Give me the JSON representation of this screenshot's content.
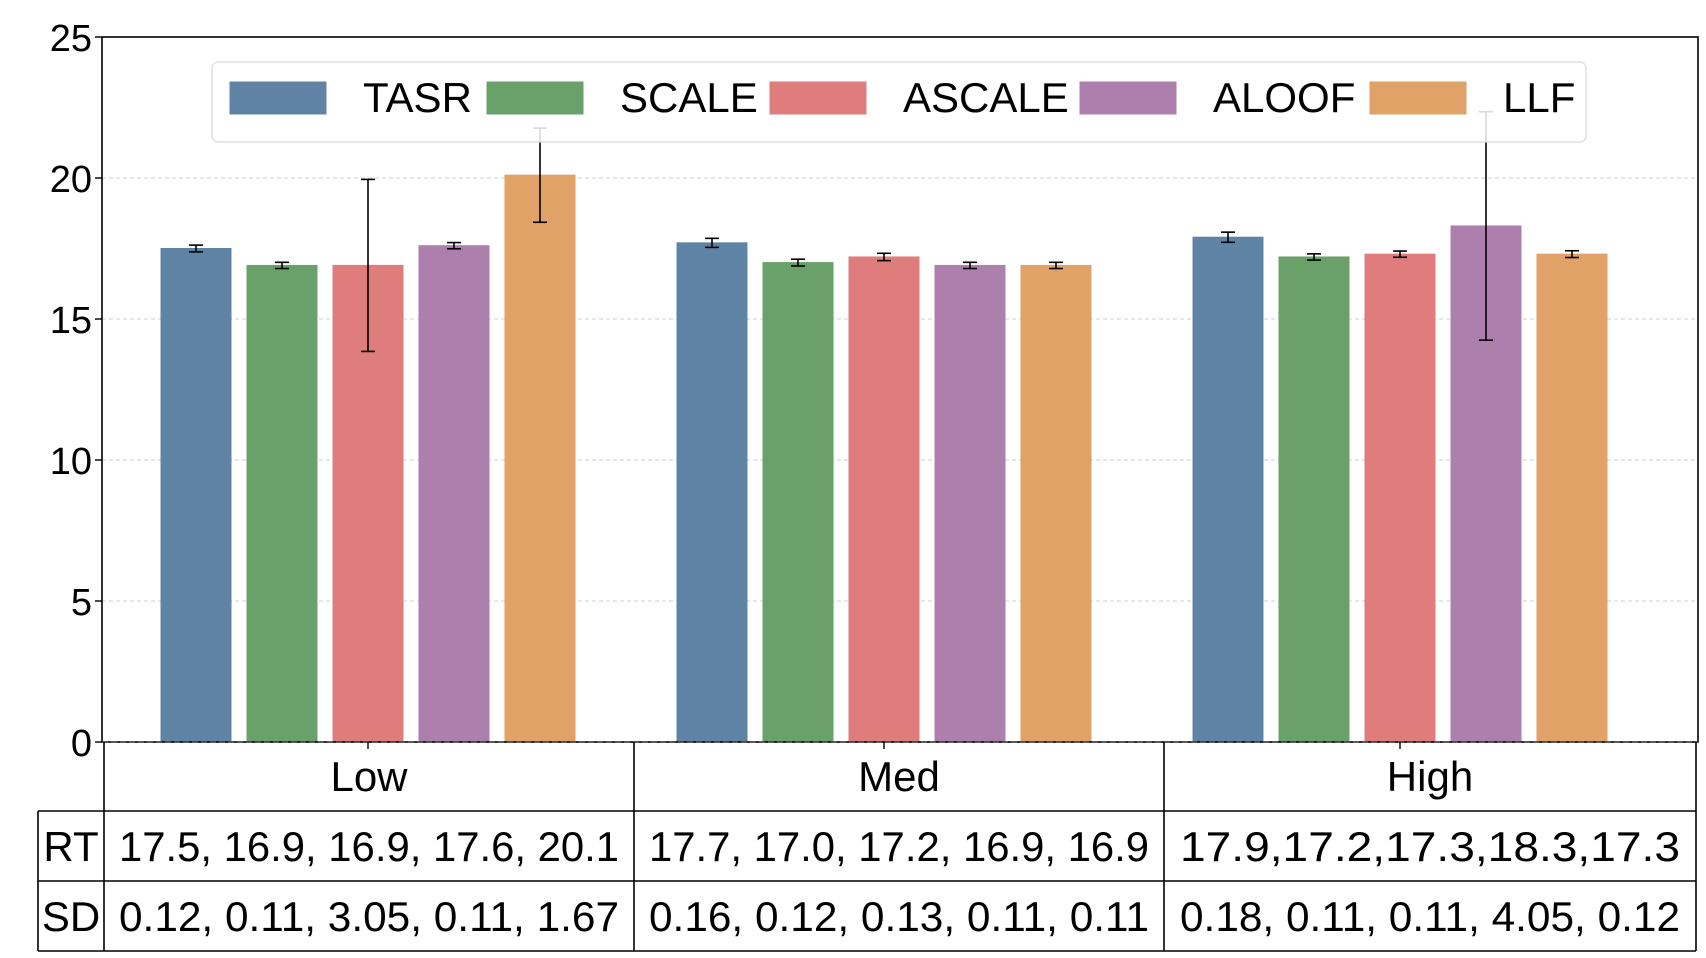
{
  "chart_data": {
    "type": "bar",
    "categories": [
      "Low",
      "Med",
      "High"
    ],
    "series": [
      {
        "name": "TASR",
        "color": "#5f83a4",
        "values": [
          17.5,
          17.7,
          17.9
        ],
        "errors": [
          0.12,
          0.16,
          0.18
        ]
      },
      {
        "name": "SCALE",
        "color": "#6aa16a",
        "values": [
          16.9,
          17.0,
          17.2
        ],
        "errors": [
          0.11,
          0.12,
          0.11
        ]
      },
      {
        "name": "ASCALE",
        "color": "#df7d7d",
        "values": [
          16.9,
          17.2,
          17.3
        ],
        "errors": [
          3.05,
          0.13,
          0.11
        ]
      },
      {
        "name": "ALOOF",
        "color": "#ad7fac",
        "values": [
          17.6,
          16.9,
          18.3
        ],
        "errors": [
          0.11,
          0.11,
          4.05
        ]
      },
      {
        "name": "LLF",
        "color": "#e0a266",
        "values": [
          20.1,
          16.9,
          17.3
        ],
        "errors": [
          1.67,
          0.11,
          0.12
        ]
      }
    ],
    "ylim": [
      0,
      25
    ],
    "yticks": [
      "0",
      "5",
      "10",
      "15",
      "20",
      "25"
    ],
    "grid": true,
    "legend": "top",
    "table": {
      "row_labels": [
        "RT",
        "SD"
      ],
      "rows": [
        [
          "17.5, 16.9, 16.9, 17.6, 20.1",
          "17.7, 17.0, 17.2, 16.9, 16.9",
          "17.9,17.2,17.3,18.3,17.3"
        ],
        [
          "0.12, 0.11, 3.05, 0.11, 1.67",
          "0.16, 0.12, 0.13, 0.11, 0.11",
          "0.18, 0.11, 0.11, 4.05, 0.12"
        ]
      ]
    }
  }
}
